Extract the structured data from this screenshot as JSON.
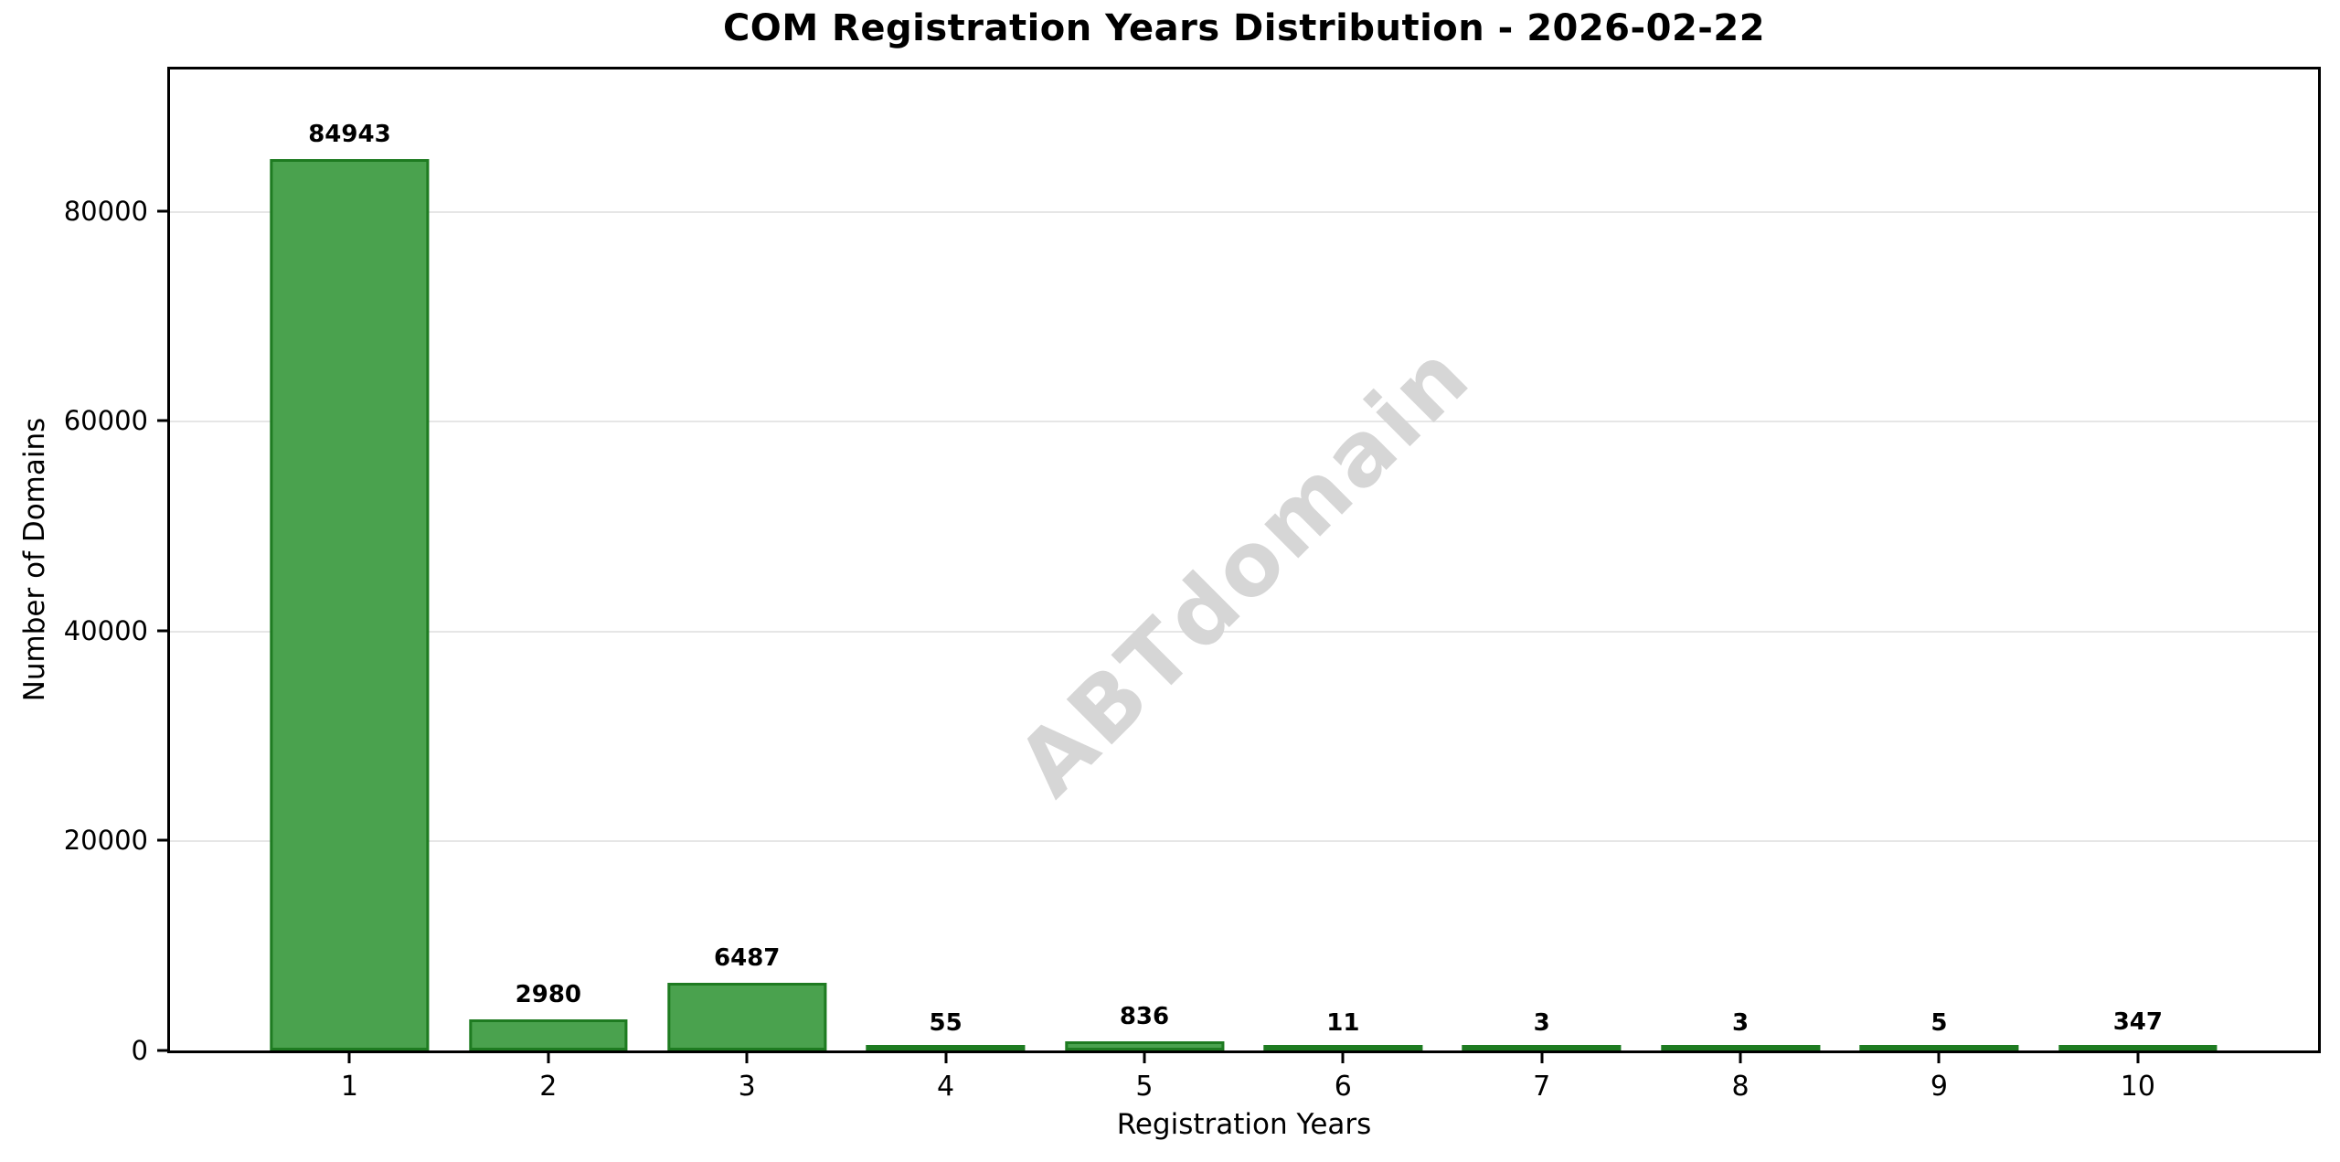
{
  "chart_data": {
    "type": "bar",
    "title": "COM Registration Years Distribution - 2026-02-22",
    "xlabel": "Registration Years",
    "ylabel": "Number of Domains",
    "categories": [
      "1",
      "2",
      "3",
      "4",
      "5",
      "6",
      "7",
      "8",
      "9",
      "10"
    ],
    "values": [
      84943,
      2980,
      6487,
      55,
      836,
      11,
      3,
      3,
      5,
      347
    ],
    "value_labels": [
      "84943",
      "2980",
      "6487",
      "55",
      "836",
      "11",
      "3",
      "3",
      "5",
      "347"
    ],
    "ylim": [
      0,
      93500
    ],
    "yticks": [
      0,
      20000,
      40000,
      60000,
      80000
    ],
    "ytick_labels": [
      "0",
      "20000",
      "40000",
      "60000",
      "80000"
    ],
    "grid": "horizontal",
    "legend": "none",
    "watermark": "ABTdomain",
    "colors": {
      "bar_fill": "#4aa24e",
      "bar_edge": "#1e7b21",
      "gridline": "#e6e6e6",
      "watermark": "#d6d6d6",
      "text": "#000000",
      "background": "#ffffff"
    }
  }
}
